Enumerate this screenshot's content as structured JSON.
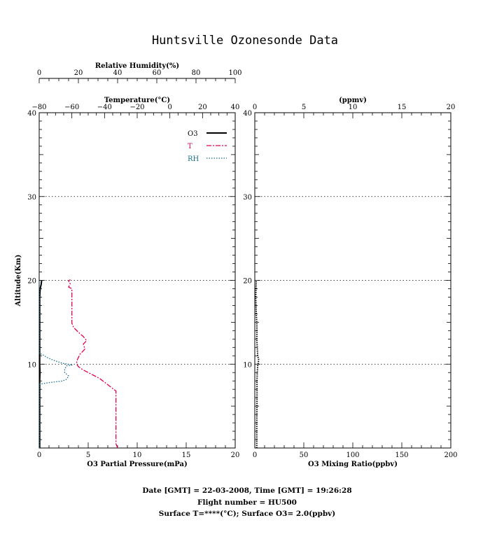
{
  "title": "Huntsville Ozonesonde Data",
  "footer": {
    "line1": "Date [GMT] = 22-03-2008,  Time [GMT] = 19:26:28",
    "line2": "Flight number = HU500",
    "line3": "Surface T=****(°C); Surface O3= 2.0(ppbv)"
  },
  "colors": {
    "o3": "#000000",
    "temperature": "#e0004a",
    "rh": "#1a6e8a"
  },
  "chart_data": [
    {
      "type": "line",
      "panel": "left",
      "ylabel": "Altitude(Km)",
      "ylim": [
        0,
        40
      ],
      "y_ticks": [
        10,
        20,
        30,
        40
      ],
      "grid": "dotted horizontal at 10, 20, 30 km",
      "legend_placement": "top-right",
      "axes": {
        "bottom": {
          "label": "O3 Partial Pressure(mPa)",
          "range": [
            0,
            20
          ],
          "ticks": [
            0,
            5,
            10,
            15,
            20
          ]
        },
        "temperature": {
          "label": "Temperature(°C)",
          "range": [
            -80,
            40
          ],
          "ticks": [
            -80,
            -60,
            -40,
            -20,
            0,
            20,
            40
          ]
        },
        "rh": {
          "label": "Relative Humidity(%)",
          "range": [
            0,
            100
          ],
          "ticks": [
            0,
            20,
            40,
            60,
            80,
            100
          ]
        }
      },
      "series": [
        {
          "name": "O3",
          "axis": "bottom",
          "points": [
            [
              0.05,
              0
            ],
            [
              0.05,
              2
            ],
            [
              0.05,
              4
            ],
            [
              0.05,
              6
            ],
            [
              0.05,
              8
            ],
            [
              0.08,
              9
            ],
            [
              0.05,
              10
            ],
            [
              0.05,
              12
            ],
            [
              0.05,
              14
            ],
            [
              0.05,
              16
            ],
            [
              0.05,
              18
            ],
            [
              0.1,
              19
            ],
            [
              0.2,
              19.5
            ],
            [
              0.25,
              20
            ]
          ]
        },
        {
          "name": "T",
          "axis": "temperature",
          "points": [
            [
              -32,
              0
            ],
            [
              -33,
              0.5
            ],
            [
              -33,
              6.8
            ],
            [
              -37,
              7.4
            ],
            [
              -43,
              8.3
            ],
            [
              -49,
              8.9
            ],
            [
              -53,
              9.3
            ],
            [
              -56,
              9.7
            ],
            [
              -57,
              10
            ],
            [
              -57,
              10.4
            ],
            [
              -55,
              11.2
            ],
            [
              -52,
              11.8
            ],
            [
              -53,
              12.4
            ],
            [
              -51,
              12.8
            ],
            [
              -53,
              13.3
            ],
            [
              -56,
              13.8
            ],
            [
              -59,
              14.4
            ],
            [
              -60,
              14.9
            ],
            [
              -60,
              15.5
            ],
            [
              -60,
              17.5
            ],
            [
              -60,
              18.5
            ],
            [
              -60,
              19.0
            ],
            [
              -62,
              19.2
            ],
            [
              -61,
              19.6
            ],
            [
              -62,
              19.9
            ],
            [
              -61,
              20.1
            ]
          ]
        },
        {
          "name": "RH",
          "axis": "rh",
          "points": [
            [
              0,
              0
            ],
            [
              0,
              7.6
            ],
            [
              5,
              7.8
            ],
            [
              12,
              8.0
            ],
            [
              14,
              8.2
            ],
            [
              15,
              8.6
            ],
            [
              13,
              9.0
            ],
            [
              13,
              9.4
            ],
            [
              14,
              9.8
            ],
            [
              17,
              9.9
            ],
            [
              12,
              10.1
            ],
            [
              7,
              10.5
            ],
            [
              4,
              10.8
            ],
            [
              2,
              11.1
            ],
            [
              0,
              11.3
            ],
            [
              0,
              20
            ]
          ]
        }
      ]
    },
    {
      "type": "line",
      "panel": "right",
      "ylim": [
        0,
        40
      ],
      "y_ticks": [
        10,
        20,
        30,
        40
      ],
      "grid": "dotted horizontal at 10, 20, 30 km",
      "axes": {
        "bottom": {
          "label": "O3 Mixing Ratio(ppbv)",
          "range": [
            0,
            200
          ],
          "ticks": [
            0,
            50,
            100,
            150,
            200
          ]
        },
        "top": {
          "label": "(ppmv)",
          "range": [
            0,
            20
          ],
          "ticks": [
            0,
            5,
            10,
            15,
            20
          ]
        }
      },
      "series": [
        {
          "name": "O3",
          "axis": "bottom",
          "points": [
            [
              2,
              0
            ],
            [
              2,
              3
            ],
            [
              2.3,
              6
            ],
            [
              2.2,
              8
            ],
            [
              2.5,
              9
            ],
            [
              3,
              9.8
            ],
            [
              4,
              10.5
            ],
            [
              3,
              11
            ],
            [
              2.5,
              12
            ],
            [
              2,
              13
            ],
            [
              2.2,
              14
            ],
            [
              2,
              15
            ],
            [
              1.5,
              16
            ],
            [
              1.2,
              17
            ],
            [
              1,
              18
            ],
            [
              1.2,
              19
            ],
            [
              1.5,
              20
            ]
          ]
        }
      ]
    }
  ]
}
